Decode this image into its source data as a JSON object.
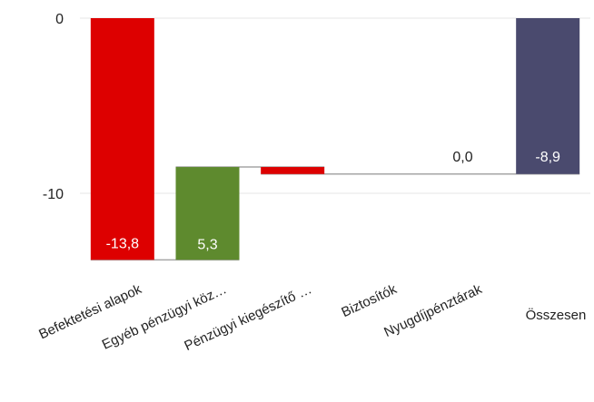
{
  "chart_data": {
    "type": "bar",
    "subtype": "waterfall",
    "title": "",
    "xlabel": "",
    "ylabel": "",
    "ylim": [
      -14.6,
      0.6
    ],
    "yticks": [
      0,
      -10
    ],
    "ytick_labels": [
      "0",
      "-10"
    ],
    "grid": true,
    "categories": [
      "Befektetési alapok",
      "Egyéb pénzügyi köz…",
      "Pénzügyi kiegészítő …",
      "Biztosítók",
      "Nyugdíjpénztárak",
      "Összesen"
    ],
    "values": [
      -13.8,
      5.3,
      -0.4,
      0.0,
      0.0,
      -8.9
    ],
    "data_labels": [
      "-13,8",
      "5,3",
      "",
      "",
      "0,0",
      "-8,9"
    ],
    "bar_kinds": [
      "decrease",
      "increase",
      "decrease",
      "none",
      "none",
      "total"
    ],
    "colors": {
      "decrease": "#dd0000",
      "increase": "#5e8a2e",
      "total": "#4a4a6e",
      "gridline": "#e6e6e6",
      "connector": "#a6a6a6"
    }
  }
}
